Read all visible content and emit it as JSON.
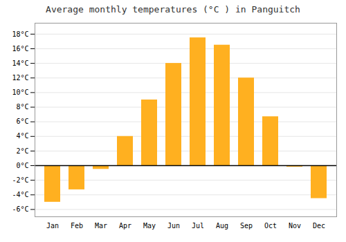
{
  "chart_data": {
    "type": "bar",
    "title": "Average monthly temperatures (°C ) in Panguitch",
    "categories": [
      "Jan",
      "Feb",
      "Mar",
      "Apr",
      "May",
      "Jun",
      "Jul",
      "Aug",
      "Sep",
      "Oct",
      "Nov",
      "Dec"
    ],
    "values": [
      -5.0,
      -3.3,
      -0.5,
      4.0,
      9.0,
      14.0,
      17.5,
      16.5,
      12.0,
      6.7,
      -0.2,
      -4.5
    ],
    "color": "#FFB020",
    "ylim": [
      -7,
      19.5
    ],
    "yticks": [
      {
        "value": -6,
        "label": "-6°C"
      },
      {
        "value": -4,
        "label": "-4°C"
      },
      {
        "value": -2,
        "label": "-2°C"
      },
      {
        "value": 0,
        "label": "0°C"
      },
      {
        "value": 2,
        "label": "2°C"
      },
      {
        "value": 4,
        "label": "4°C"
      },
      {
        "value": 6,
        "label": "6°C"
      },
      {
        "value": 8,
        "label": "8°C"
      },
      {
        "value": 10,
        "label": "10°C"
      },
      {
        "value": 12,
        "label": "12°C"
      },
      {
        "value": 14,
        "label": "14°C"
      },
      {
        "value": 16,
        "label": "16°C"
      },
      {
        "value": 18,
        "label": "18°C"
      }
    ],
    "grid": true
  }
}
